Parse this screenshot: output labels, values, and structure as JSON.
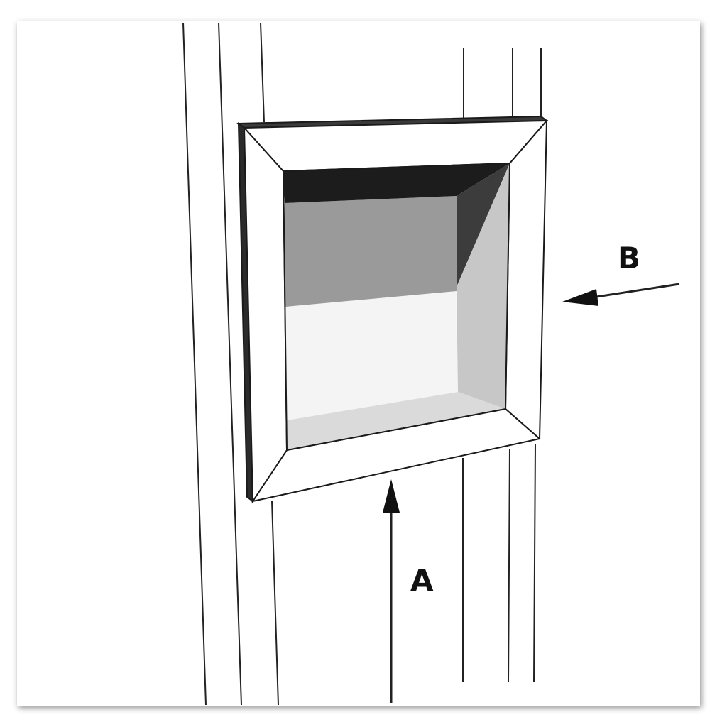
{
  "labels": {
    "a": "A",
    "b": "B"
  },
  "colors": {
    "background": "#ffffff",
    "line": "#222222",
    "frame_face": "#ffffff",
    "frame_side_dark": "#2b2b2b",
    "recess_top_band": "#1c1c1c",
    "recess_back_upper": "#9a9a9a",
    "recess_right_dark": "#3c3c3c",
    "recess_right_light": "#c7c7c7",
    "recess_back_lower": "#f4f4f4",
    "recess_sill": "#dadada"
  }
}
